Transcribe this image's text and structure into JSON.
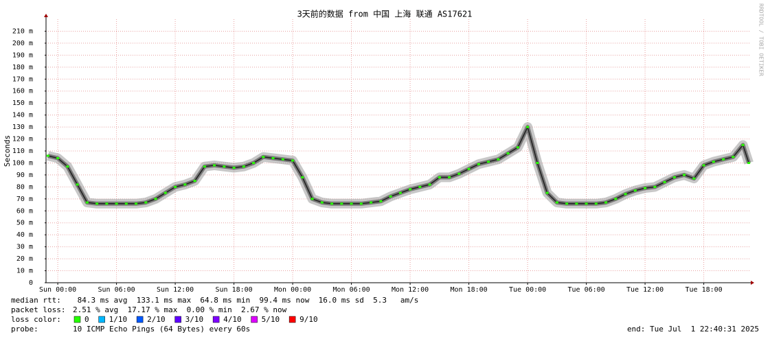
{
  "chart_data": {
    "type": "line",
    "title": "3天前的数据 from 中国 上海 联通 AS17621",
    "y_label": "Seconds",
    "watermark": "RRDTOOL / TOBI OETIKER",
    "ylim": [
      0,
      0.22
    ],
    "yticks": [
      0,
      {
        "value": 0.01,
        "label": "10 m"
      },
      {
        "value": 0.02,
        "label": "20 m"
      },
      {
        "value": 0.03,
        "label": "30 m"
      },
      {
        "value": 0.04,
        "label": "40 m"
      },
      {
        "value": 0.05,
        "label": "50 m"
      },
      {
        "value": 0.06,
        "label": "60 m"
      },
      {
        "value": 0.07,
        "label": "70 m"
      },
      {
        "value": 0.08,
        "label": "80 m"
      },
      {
        "value": 0.09,
        "label": "90 m"
      },
      {
        "value": 0.1,
        "label": "100 m"
      },
      {
        "value": 0.11,
        "label": "110 m"
      },
      {
        "value": 0.12,
        "label": "120 m"
      },
      {
        "value": 0.13,
        "label": "130 m"
      },
      {
        "value": 0.14,
        "label": "140 m"
      },
      {
        "value": 0.15,
        "label": "150 m"
      },
      {
        "value": 0.16,
        "label": "160 m"
      },
      {
        "value": 0.17,
        "label": "170 m"
      },
      {
        "value": 0.18,
        "label": "180 m"
      },
      {
        "value": 0.19,
        "label": "190 m"
      },
      {
        "value": 0.2,
        "label": "200 m"
      },
      {
        "value": 0.21,
        "label": "210 m"
      }
    ],
    "xlim": [
      -1.2,
      70.8
    ],
    "xticks": [
      {
        "value": 0,
        "label": "Sun 00:00"
      },
      {
        "value": 6,
        "label": "Sun 06:00"
      },
      {
        "value": 12,
        "label": "Sun 12:00"
      },
      {
        "value": 18,
        "label": "Sun 18:00"
      },
      {
        "value": 24,
        "label": "Mon 00:00"
      },
      {
        "value": 30,
        "label": "Mon 06:00"
      },
      {
        "value": 36,
        "label": "Mon 12:00"
      },
      {
        "value": 42,
        "label": "Mon 18:00"
      },
      {
        "value": 48,
        "label": "Tue 00:00"
      },
      {
        "value": 54,
        "label": "Tue 06:00"
      },
      {
        "value": 60,
        "label": "Tue 12:00"
      },
      {
        "value": 66,
        "label": "Tue 18:00"
      }
    ],
    "grid": true,
    "x": [
      -1,
      0,
      1,
      2,
      3,
      4,
      5,
      6,
      7,
      8,
      9,
      10,
      11,
      12,
      13,
      14,
      15,
      16,
      17,
      18,
      19,
      20,
      21,
      22,
      23,
      24,
      25,
      26,
      27,
      28,
      29,
      30,
      31,
      32,
      33,
      34,
      35,
      36,
      37,
      38,
      39,
      40,
      41,
      42,
      43,
      44,
      45,
      46,
      47,
      48,
      49,
      50,
      51,
      52,
      53,
      54,
      55,
      56,
      57,
      58,
      59,
      60,
      61,
      62,
      63,
      64,
      65,
      66,
      67,
      68,
      69,
      70,
      70.6
    ],
    "series": [
      {
        "color": "#202020",
        "values": [
          0.106,
          0.104,
          0.097,
          0.082,
          0.067,
          0.066,
          0.066,
          0.066,
          0.066,
          0.066,
          0.067,
          0.07,
          0.075,
          0.08,
          0.082,
          0.085,
          0.097,
          0.098,
          0.097,
          0.096,
          0.097,
          0.1,
          0.105,
          0.104,
          0.103,
          0.102,
          0.088,
          0.07,
          0.067,
          0.066,
          0.066,
          0.066,
          0.066,
          0.067,
          0.068,
          0.072,
          0.075,
          0.078,
          0.08,
          0.082,
          0.088,
          0.088,
          0.091,
          0.095,
          0.099,
          0.101,
          0.103,
          0.108,
          0.113,
          0.13,
          0.1,
          0.075,
          0.067,
          0.066,
          0.066,
          0.066,
          0.066,
          0.067,
          0.07,
          0.074,
          0.077,
          0.079,
          0.08,
          0.084,
          0.088,
          0.09,
          0.087,
          0.098,
          0.101,
          0.103,
          0.105,
          0.115,
          0.1
        ]
      }
    ],
    "stats": [
      {
        "label": "median rtt:",
        "text": " 84.3 ms avg  133.1 ms max  64.8 ms min  99.4 ms now  16.0 ms sd  5.3   am/s"
      },
      {
        "label": "packet loss:",
        "text": "2.51 % avg  17.17 % max  0.00 % min  2.67 % now"
      }
    ],
    "loss_color_label": "loss color:",
    "loss_colors": [
      {
        "name": "0",
        "color": "#26ff00"
      },
      {
        "name": "1/10",
        "color": "#00b8ff"
      },
      {
        "name": "2/10",
        "color": "#0059ff"
      },
      {
        "name": "3/10",
        "color": "#5e00ff"
      },
      {
        "name": "4/10",
        "color": "#7e00ff"
      },
      {
        "name": "5/10",
        "color": "#dd00ff"
      },
      {
        "name": "9/10",
        "color": "#ff0000"
      }
    ],
    "probe_label": "probe:",
    "probe": "10 ICMP Echo Pings (64 Bytes) every 60s",
    "end": "end: Tue Jul  1 22:40:31 2025"
  }
}
